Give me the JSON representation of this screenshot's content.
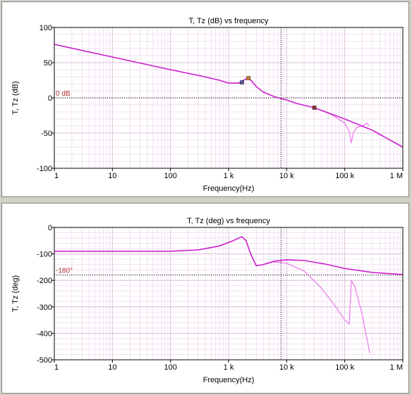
{
  "chart_data": [
    {
      "type": "line",
      "title": "T, Tz (dB) vs frequency",
      "xlabel": "Frequency(Hz)",
      "ylabel": "T, Tz (dB)",
      "xscale": "log",
      "xlim": [
        1,
        1000000
      ],
      "ylim": [
        -100,
        100
      ],
      "xticks": [
        1,
        10,
        100,
        1000,
        10000,
        100000,
        1000000
      ],
      "xtick_labels": [
        "1",
        "10",
        "100",
        "1 k",
        "10 k",
        "100 k",
        "1 M"
      ],
      "yticks": [
        100,
        50,
        0,
        -50,
        -100
      ],
      "ytick_labels": [
        "100",
        "50",
        "0",
        "-50",
        "-100"
      ],
      "grid": true,
      "reference": {
        "axis": "y",
        "value": 0,
        "label": "0 dB",
        "color": "#b03030"
      },
      "crossover": {
        "axis": "x",
        "value": 8000
      },
      "series": [
        {
          "color": "#ee88ee",
          "points": [
            [
              1,
              76
            ],
            [
              10,
              58
            ],
            [
              100,
              40
            ],
            [
              300,
              32
            ],
            [
              700,
              25
            ],
            [
              1000,
              21
            ],
            [
              1500,
              21
            ],
            [
              2000,
              27
            ],
            [
              2200,
              28
            ],
            [
              2500,
              24
            ],
            [
              3000,
              16
            ],
            [
              4000,
              8
            ],
            [
              6000,
              2
            ],
            [
              8000,
              -1
            ],
            [
              10000,
              -3
            ],
            [
              15000,
              -8
            ],
            [
              30000,
              -14
            ],
            [
              60000,
              -24
            ],
            [
              100000,
              -36
            ],
            [
              120000,
              -48
            ],
            [
              130000,
              -64
            ],
            [
              140000,
              -50
            ],
            [
              160000,
              -42
            ],
            [
              200000,
              -40
            ],
            [
              240000,
              -36
            ],
            [
              270000,
              -40
            ]
          ]
        },
        {
          "color": "#cc22cc",
          "points": [
            [
              1,
              76
            ],
            [
              10,
              58
            ],
            [
              100,
              40
            ],
            [
              300,
              32
            ],
            [
              700,
              25
            ],
            [
              1000,
              21
            ],
            [
              1500,
              21
            ],
            [
              2000,
              27
            ],
            [
              2200,
              28
            ],
            [
              2500,
              24
            ],
            [
              3000,
              16
            ],
            [
              4000,
              8
            ],
            [
              6000,
              2
            ],
            [
              8000,
              -1
            ],
            [
              10000,
              -3
            ],
            [
              15000,
              -8
            ],
            [
              30000,
              -14
            ],
            [
              100000,
              -30
            ],
            [
              300000,
              -46
            ],
            [
              1000000,
              -70
            ]
          ]
        }
      ],
      "markers": [
        {
          "x": 1700,
          "y": 22,
          "color": "#5555aa"
        },
        {
          "x": 2200,
          "y": 28,
          "color": "#cc8833"
        },
        {
          "x": 30000,
          "y": -14,
          "color": "#993333"
        }
      ]
    },
    {
      "type": "line",
      "title": "T, Tz (deg) vs frequency",
      "xlabel": "Frequency(Hz)",
      "ylabel": "T, Tz (deg)",
      "xscale": "log",
      "xlim": [
        1,
        1000000
      ],
      "ylim": [
        -500,
        0
      ],
      "xticks": [
        1,
        10,
        100,
        1000,
        10000,
        100000,
        1000000
      ],
      "xtick_labels": [
        "1",
        "10",
        "100",
        "1 k",
        "10 k",
        "100 k",
        "1 M"
      ],
      "yticks": [
        0,
        -100,
        -200,
        -300,
        -400,
        -500
      ],
      "ytick_labels": [
        "0",
        "-100",
        "-200",
        "-300",
        "-400",
        "-500"
      ],
      "grid": true,
      "reference": {
        "axis": "y",
        "value": -180,
        "label": "-180°",
        "color": "#b03030"
      },
      "crossover": {
        "axis": "x",
        "value": 8000
      },
      "series": [
        {
          "color": "#ee88ee",
          "points": [
            [
              1,
              -90
            ],
            [
              10,
              -90
            ],
            [
              100,
              -90
            ],
            [
              300,
              -85
            ],
            [
              700,
              -70
            ],
            [
              1200,
              -50
            ],
            [
              1700,
              -35
            ],
            [
              2000,
              -50
            ],
            [
              2400,
              -100
            ],
            [
              3000,
              -145
            ],
            [
              4000,
              -140
            ],
            [
              6000,
              -130
            ],
            [
              10000,
              -135
            ],
            [
              20000,
              -165
            ],
            [
              40000,
              -230
            ],
            [
              70000,
              -300
            ],
            [
              100000,
              -350
            ],
            [
              120000,
              -365
            ],
            [
              130000,
              -200
            ],
            [
              150000,
              -225
            ],
            [
              200000,
              -330
            ],
            [
              270000,
              -475
            ]
          ]
        },
        {
          "color": "#cc22cc",
          "points": [
            [
              1,
              -90
            ],
            [
              10,
              -90
            ],
            [
              100,
              -90
            ],
            [
              300,
              -85
            ],
            [
              700,
              -70
            ],
            [
              1200,
              -50
            ],
            [
              1700,
              -35
            ],
            [
              2000,
              -50
            ],
            [
              2400,
              -100
            ],
            [
              3000,
              -145
            ],
            [
              4000,
              -140
            ],
            [
              6000,
              -128
            ],
            [
              10000,
              -122
            ],
            [
              20000,
              -125
            ],
            [
              50000,
              -140
            ],
            [
              100000,
              -155
            ],
            [
              300000,
              -170
            ],
            [
              1000000,
              -178
            ]
          ]
        }
      ]
    }
  ]
}
